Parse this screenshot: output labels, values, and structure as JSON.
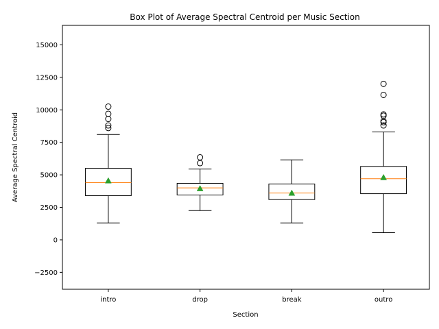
{
  "chart_data": {
    "type": "box",
    "title": "Box Plot of Average Spectral Centroid per Music Section",
    "xlabel": "Section",
    "ylabel": "Average Spectral Centroid",
    "ylim": [
      -3800,
      16500
    ],
    "yticks": [
      -2500,
      0,
      2500,
      5000,
      7500,
      10000,
      12500,
      15000
    ],
    "ytick_labels": [
      "−2500",
      "0",
      "2500",
      "5000",
      "7500",
      "10000",
      "12500",
      "15000"
    ],
    "grid": false,
    "legend": "none",
    "categories": [
      "intro",
      "drop",
      "break",
      "outro"
    ],
    "boxes": [
      {
        "category": "intro",
        "whisker_low": 1300,
        "q1": 3400,
        "median": 4400,
        "q3": 5500,
        "whisker_high": 8100,
        "mean": 4550,
        "outliers": [
          8600,
          8800,
          9300,
          9700,
          10250
        ]
      },
      {
        "category": "drop",
        "whisker_low": 2250,
        "q1": 3450,
        "median": 4000,
        "q3": 4350,
        "whisker_high": 5450,
        "mean": 3950,
        "outliers": [
          5900,
          6350
        ]
      },
      {
        "category": "break",
        "whisker_low": 1300,
        "q1": 3100,
        "median": 3600,
        "q3": 4300,
        "whisker_high": 6150,
        "mean": 3600,
        "outliers": []
      },
      {
        "category": "outro",
        "whisker_low": 550,
        "q1": 3550,
        "median": 4700,
        "q3": 5650,
        "whisker_high": 8300,
        "mean": 4800,
        "outliers": [
          8800,
          9050,
          9150,
          9550,
          9650,
          11150,
          12000
        ]
      }
    ],
    "colors": {
      "box": "#000000",
      "median": "#ff7f0e",
      "mean": "#2ca02c",
      "outlier": "#000000"
    }
  }
}
